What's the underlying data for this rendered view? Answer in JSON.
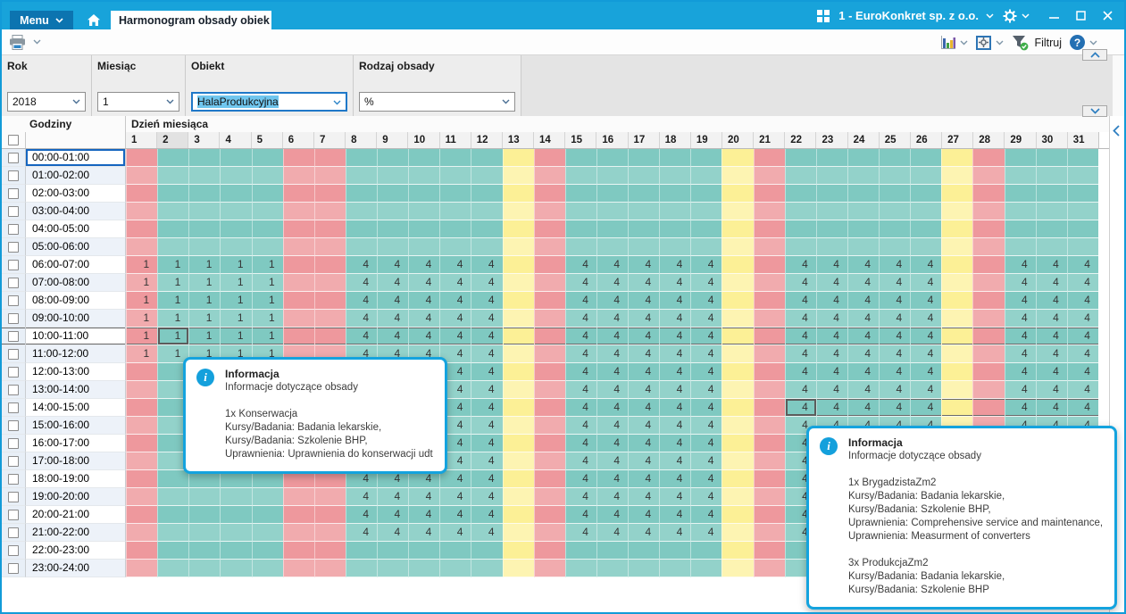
{
  "titlebar": {
    "menu_label": "Menu",
    "tab_label": "Harmonogram obsady obiek",
    "company_label": "1 - EuroKonkret sp. z o.o."
  },
  "toolbar": {
    "filter_label": "Filtruj",
    "icons": [
      "printer-icon",
      "bar-chart-icon",
      "gear-box-icon",
      "filter-funnel-icon",
      "help-icon"
    ]
  },
  "filters": {
    "rok": {
      "label": "Rok",
      "value": "2018"
    },
    "miesiac": {
      "label": "Miesiąc",
      "value": "1"
    },
    "obiekt": {
      "label": "Obiekt",
      "value": "HalaProdukcyjna"
    },
    "rodzaj": {
      "label": "Rodzaj obsady",
      "value": "%"
    }
  },
  "grid": {
    "hours_header": "Godziny",
    "days_header": "Dzień miesiąca",
    "hours": [
      "00:00-01:00",
      "01:00-02:00",
      "02:00-03:00",
      "03:00-04:00",
      "04:00-05:00",
      "05:00-06:00",
      "06:00-07:00",
      "07:00-08:00",
      "08:00-09:00",
      "09:00-10:00",
      "10:00-11:00",
      "11:00-12:00",
      "12:00-13:00",
      "13:00-14:00",
      "14:00-15:00",
      "15:00-16:00",
      "16:00-17:00",
      "17:00-18:00",
      "18:00-19:00",
      "19:00-20:00",
      "20:00-21:00",
      "21:00-22:00",
      "22:00-23:00",
      "23:00-24:00"
    ],
    "days": [
      1,
      2,
      3,
      4,
      5,
      6,
      7,
      8,
      9,
      10,
      11,
      12,
      13,
      14,
      15,
      16,
      17,
      18,
      19,
      20,
      21,
      22,
      23,
      24,
      25,
      26,
      27,
      28,
      29,
      30,
      31
    ],
    "day_types": [
      "red",
      "teal",
      "teal",
      "teal",
      "teal",
      "red",
      "red",
      "teal",
      "teal",
      "teal",
      "teal",
      "teal",
      "yellow",
      "red",
      "teal",
      "teal",
      "teal",
      "teal",
      "teal",
      "yellow",
      "red",
      "teal",
      "teal",
      "teal",
      "teal",
      "teal",
      "yellow",
      "red",
      "teal",
      "teal",
      "teal"
    ],
    "value_blocks": [
      {
        "value": "1",
        "days": [
          1,
          2,
          3,
          4,
          5
        ],
        "rows": [
          6,
          11
        ]
      },
      {
        "value": "4",
        "days": [
          8,
          9,
          10,
          11,
          12,
          15,
          16,
          17,
          18,
          19,
          22,
          23,
          24,
          25,
          26,
          29,
          30,
          31
        ],
        "rows": [
          6,
          21
        ]
      }
    ],
    "selection": {
      "focused_hour_row": 0,
      "current_cell": {
        "row": 10,
        "day": 2
      },
      "hovered_cell": {
        "row": 14,
        "day": 22
      },
      "selected_day_header": 2
    }
  },
  "tooltips": [
    {
      "title": "Informacja",
      "lines": [
        "Informacje dotyczące obsady",
        "",
        "1x Konserwacja",
        "Kursy/Badania: Badania lekarskie,",
        "Kursy/Badania: Szkolenie BHP,",
        "Uprawnienia: Uprawnienia do konserwacji udt"
      ]
    },
    {
      "title": "Informacja",
      "lines": [
        "Informacje dotyczące obsady",
        "",
        "1x BrygadzistaZm2",
        "Kursy/Badania: Badania lekarskie,",
        "Kursy/Badania: Szkolenie BHP,",
        "Uprawnienia: Comprehensive service and maintenance,",
        "Uprawnienia: Measurment of converters",
        "",
        "3x ProdukcjaZm2",
        "Kursy/Badania: Badania lekarskie,",
        "Kursy/Badania: Szkolenie BHP"
      ]
    }
  ],
  "colors": {
    "titlebar": "#18a3da",
    "accent_blue": "#129bd8",
    "workday_cell": "#7fc9c1",
    "workday_cell_alt": "#93d2ca",
    "holiday_cell": "#ee989d",
    "holiday_cell_alt": "#f1abae",
    "saturday_cell": "#fcf096",
    "saturday_cell_alt": "#fdf4b2"
  }
}
